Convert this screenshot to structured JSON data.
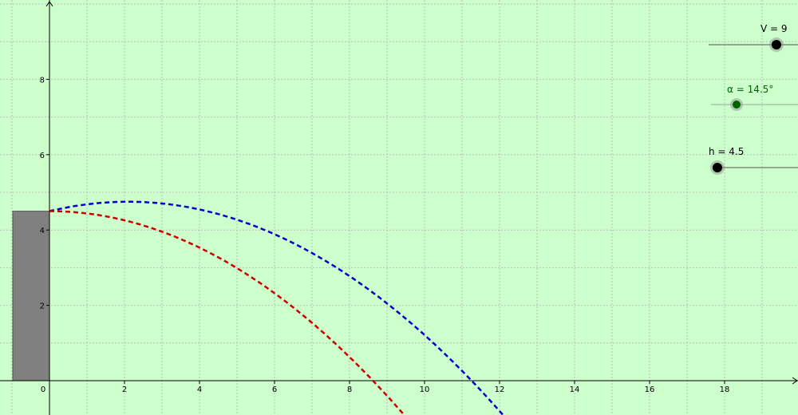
{
  "app": {
    "background_color": "#ccffcc",
    "grid_color": "#bcbcbc",
    "axis_color": "#000000"
  },
  "axes": {
    "x_ticks": [
      {
        "value": 0,
        "label": "0"
      },
      {
        "value": 2,
        "label": "2"
      },
      {
        "value": 4,
        "label": "4"
      },
      {
        "value": 6,
        "label": "6"
      },
      {
        "value": 8,
        "label": "8"
      },
      {
        "value": 10,
        "label": "10"
      },
      {
        "value": 12,
        "label": "12"
      },
      {
        "value": 14,
        "label": "14"
      },
      {
        "value": 16,
        "label": "16"
      },
      {
        "value": 18,
        "label": "18"
      }
    ],
    "y_ticks": [
      {
        "value": 2,
        "label": "2"
      },
      {
        "value": 4,
        "label": "4"
      },
      {
        "value": 6,
        "label": "6"
      },
      {
        "value": 8,
        "label": "8"
      }
    ],
    "x_range": [
      -1,
      20
    ],
    "y_range": [
      -0.85,
      10.15
    ],
    "grid_x_step": 2,
    "grid_y_step": 2
  },
  "sliders": [
    {
      "id": "v",
      "label": "V = 9",
      "value": 9,
      "range": [
        0,
        10
      ],
      "color": "#000000"
    },
    {
      "id": "alpha",
      "label": "α = 14.5°",
      "value": 14.5,
      "range": [
        0,
        90
      ],
      "color": "#006400"
    },
    {
      "id": "h",
      "label": "h = 4.5",
      "value": 4.5,
      "range": [
        0,
        10
      ],
      "color": "#000000"
    }
  ],
  "platform": {
    "height": 4.5,
    "color": "#808080"
  },
  "trajectories": [
    {
      "name": "angled",
      "color": "#0000cc",
      "launch_height": 4.5,
      "vertex_x": 2.1,
      "vertex_y": 4.75,
      "a": -0.05669
    },
    {
      "name": "horizontal",
      "color": "#cc0000",
      "launch_height": 4.5,
      "vertex_x": 0,
      "vertex_y": 4.5,
      "a": -0.06049
    }
  ]
}
